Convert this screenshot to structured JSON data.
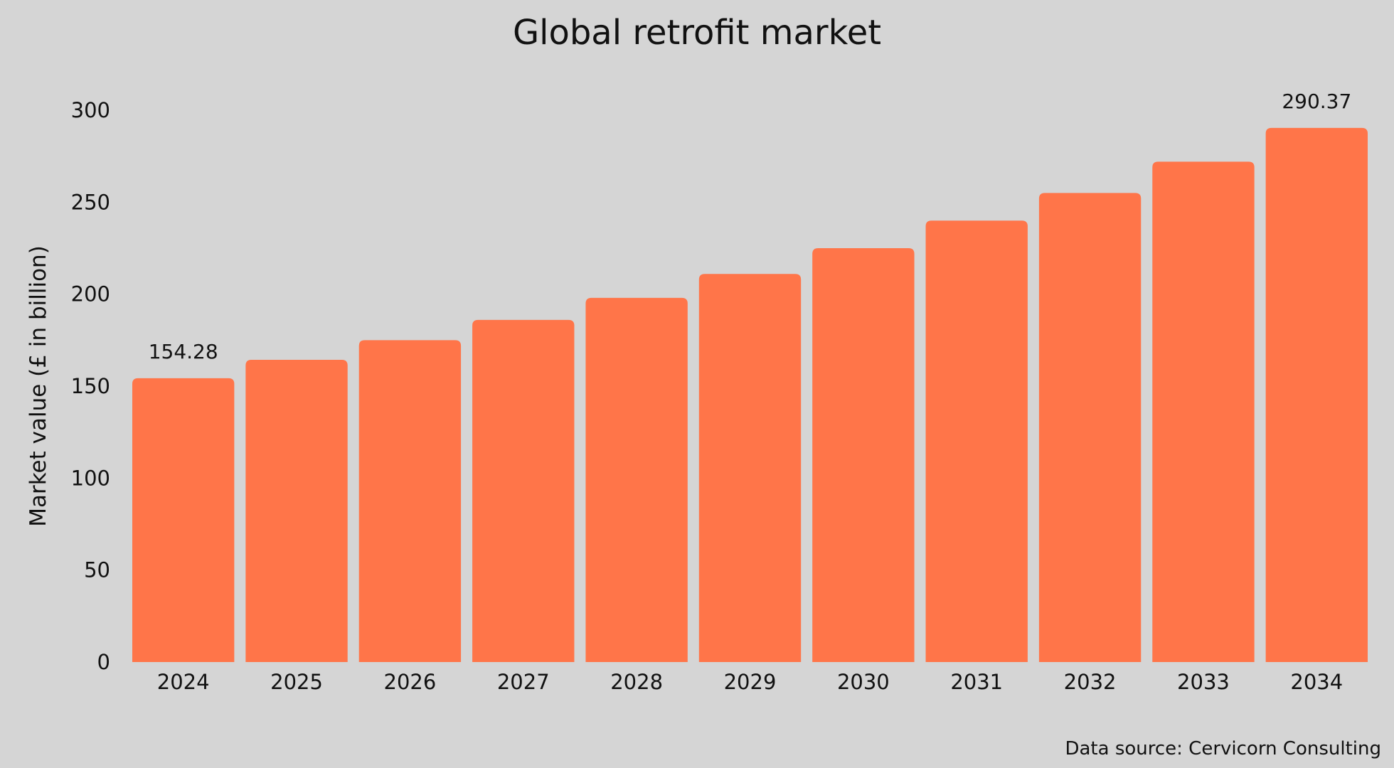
{
  "chart_data": {
    "type": "bar",
    "title": "Global retrofit market",
    "xlabel": "",
    "ylabel": "Market value (£ in billion)",
    "categories": [
      "2024",
      "2025",
      "2026",
      "2027",
      "2028",
      "2029",
      "2030",
      "2031",
      "2032",
      "2033",
      "2034"
    ],
    "values": [
      154.28,
      164.3,
      175.0,
      186.0,
      198.0,
      211.0,
      225.0,
      240.0,
      255.0,
      272.0,
      290.37
    ],
    "data_labels": [
      "154.28",
      "",
      "",
      "",
      "",
      "",
      "",
      "",
      "",
      "",
      "290.37"
    ],
    "ylim": [
      0,
      300
    ],
    "yticks": [
      0,
      50,
      100,
      150,
      200,
      250,
      300
    ],
    "grid": false,
    "legend": "none",
    "bar_color": "#ff7549",
    "background_color": "#d5d5d5",
    "source": "Data source: Cervicorn Consulting"
  }
}
